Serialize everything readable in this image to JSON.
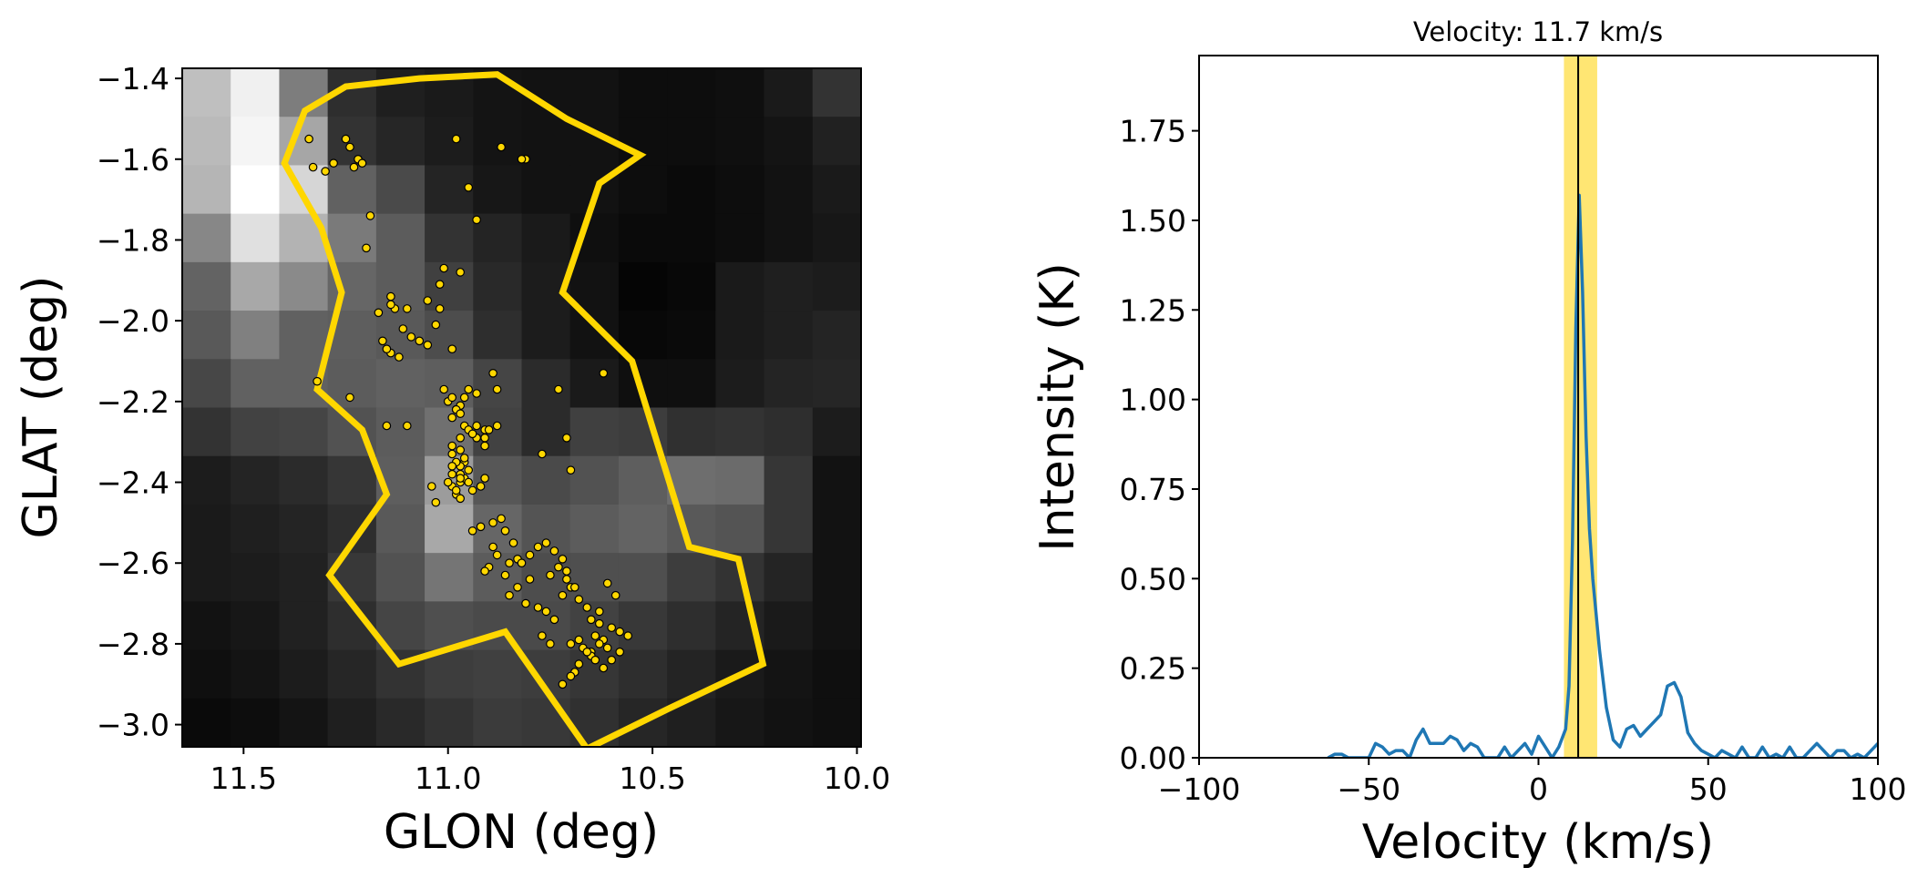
{
  "chart_data": [
    {
      "type": "heatmap",
      "title": "",
      "xlabel": "GLON (deg)",
      "ylabel": "GLAT (deg)",
      "xlim": [
        11.65,
        9.99
      ],
      "ylim": [
        -3.055,
        -1.375
      ],
      "x_ticks": [
        11.5,
        11.0,
        10.5,
        10.0
      ],
      "x_tick_labels": [
        "11.5",
        "11.0",
        "10.5",
        "10.0"
      ],
      "y_ticks": [
        -1.4,
        -1.6,
        -1.8,
        -2.0,
        -2.2,
        -2.4,
        -2.6,
        -2.8,
        -3.0
      ],
      "y_tick_labels": [
        "−1.4",
        "−1.6",
        "−1.8",
        "−2.0",
        "−2.2",
        "−2.4",
        "−2.6",
        "−2.8",
        "−3.0"
      ],
      "grid": false,
      "colormap": "gray",
      "image": {
        "x_start": 11.65,
        "x_end": 9.99,
        "y_start": -1.375,
        "y_end": -3.055,
        "values": [
          [
            0.75,
            0.94,
            0.49,
            0.18,
            0.12,
            0.1,
            0.08,
            0.07,
            0.07,
            0.05,
            0.05,
            0.06,
            0.1,
            0.2
          ],
          [
            0.73,
            0.96,
            0.65,
            0.2,
            0.15,
            0.11,
            0.08,
            0.07,
            0.07,
            0.05,
            0.05,
            0.06,
            0.08,
            0.13
          ],
          [
            0.71,
            1.0,
            0.84,
            0.38,
            0.29,
            0.14,
            0.09,
            0.07,
            0.07,
            0.05,
            0.04,
            0.05,
            0.07,
            0.1
          ],
          [
            0.53,
            0.88,
            0.7,
            0.48,
            0.36,
            0.2,
            0.14,
            0.1,
            0.06,
            0.04,
            0.04,
            0.05,
            0.07,
            0.09
          ],
          [
            0.39,
            0.66,
            0.54,
            0.4,
            0.36,
            0.25,
            0.16,
            0.11,
            0.07,
            0.02,
            0.03,
            0.1,
            0.12,
            0.11
          ],
          [
            0.35,
            0.5,
            0.38,
            0.37,
            0.35,
            0.3,
            0.18,
            0.11,
            0.07,
            0.03,
            0.04,
            0.1,
            0.12,
            0.14
          ],
          [
            0.28,
            0.38,
            0.38,
            0.36,
            0.38,
            0.37,
            0.27,
            0.17,
            0.1,
            0.06,
            0.06,
            0.11,
            0.14,
            0.15
          ],
          [
            0.2,
            0.26,
            0.27,
            0.32,
            0.36,
            0.44,
            0.26,
            0.17,
            0.25,
            0.24,
            0.19,
            0.2,
            0.18,
            0.11
          ],
          [
            0.11,
            0.14,
            0.17,
            0.21,
            0.37,
            0.61,
            0.34,
            0.29,
            0.32,
            0.37,
            0.43,
            0.42,
            0.21,
            0.07
          ],
          [
            0.1,
            0.12,
            0.14,
            0.18,
            0.35,
            0.66,
            0.4,
            0.33,
            0.36,
            0.39,
            0.35,
            0.33,
            0.21,
            0.07
          ],
          [
            0.1,
            0.11,
            0.13,
            0.22,
            0.32,
            0.46,
            0.36,
            0.3,
            0.31,
            0.31,
            0.24,
            0.2,
            0.14,
            0.07
          ],
          [
            0.07,
            0.09,
            0.13,
            0.18,
            0.27,
            0.31,
            0.29,
            0.29,
            0.26,
            0.22,
            0.18,
            0.14,
            0.1,
            0.07
          ],
          [
            0.06,
            0.08,
            0.11,
            0.15,
            0.2,
            0.24,
            0.25,
            0.24,
            0.21,
            0.18,
            0.14,
            0.1,
            0.08,
            0.06
          ],
          [
            0.04,
            0.05,
            0.08,
            0.12,
            0.16,
            0.2,
            0.23,
            0.22,
            0.19,
            0.15,
            0.12,
            0.09,
            0.07,
            0.06
          ]
        ]
      },
      "contour": {
        "color": "#FFD700",
        "x": [
          11.35,
          11.25,
          11.07,
          10.88,
          10.71,
          10.53,
          10.63,
          10.72,
          10.55,
          10.48,
          10.41,
          10.29,
          10.23,
          10.46,
          10.66,
          10.86,
          11.12,
          11.29,
          11.15,
          11.21,
          11.32,
          11.26,
          11.31,
          11.4,
          11.35
        ],
        "y": [
          -1.48,
          -1.42,
          -1.4,
          -1.39,
          -1.5,
          -1.59,
          -1.66,
          -1.93,
          -2.1,
          -2.33,
          -2.56,
          -2.59,
          -2.85,
          -2.96,
          -3.06,
          -2.77,
          -2.85,
          -2.63,
          -2.43,
          -2.27,
          -2.17,
          -1.93,
          -1.77,
          -1.61,
          -1.48
        ]
      },
      "points": {
        "color": "#FFD700",
        "edge_color": "#000000",
        "x": [
          11.34,
          11.33,
          11.25,
          11.24,
          11.22,
          11.23,
          11.21,
          11.19,
          11.2,
          11.14,
          11.13,
          11.32,
          11.24,
          11.11,
          11.09,
          11.07,
          11.05,
          11.03,
          11.02,
          11.14,
          11.12,
          11.16,
          11.15,
          11.01,
          11.0,
          10.98,
          10.96,
          10.95,
          10.93,
          10.91,
          10.97,
          10.99,
          10.97,
          10.96,
          10.93,
          10.94,
          10.91,
          10.97,
          10.95,
          10.99,
          10.97,
          10.96,
          10.99,
          10.98,
          10.97,
          10.95,
          10.94,
          10.92,
          10.91,
          10.99,
          10.98,
          10.96,
          10.99,
          10.97,
          11.0,
          10.98,
          10.97,
          11.04,
          11.03,
          11.1,
          10.99,
          10.97,
          10.96,
          10.95,
          10.93,
          10.91,
          10.9,
          10.88,
          10.92,
          10.94,
          10.89,
          10.87,
          10.86,
          10.84,
          10.89,
          10.88,
          10.9,
          10.91,
          10.86,
          10.85,
          10.83,
          10.82,
          10.8,
          10.78,
          10.76,
          10.74,
          10.72,
          10.71,
          10.73,
          10.75,
          10.8,
          10.83,
          10.85,
          10.81,
          10.78,
          10.76,
          10.74,
          10.7,
          10.68,
          10.67,
          10.65,
          10.64,
          10.62,
          10.6,
          10.58,
          10.56,
          10.63,
          10.61,
          10.65,
          10.66,
          10.68,
          10.69,
          10.7,
          10.72,
          10.64,
          10.62,
          10.6,
          10.58,
          10.63,
          10.65,
          10.7,
          10.72,
          10.68,
          10.66,
          10.63,
          10.59,
          10.61,
          10.77,
          10.75,
          10.69,
          10.71,
          11.15,
          11.28,
          11.3,
          10.87,
          10.98,
          10.95,
          10.73,
          10.62,
          10.93,
          10.81,
          10.82,
          11.01,
          10.97,
          11.05,
          11.1,
          11.17,
          11.14,
          11.02,
          10.99,
          10.89,
          10.88,
          10.99,
          10.98,
          10.97,
          10.77,
          10.71,
          10.7
        ],
        "y": [
          -1.55,
          -1.62,
          -1.55,
          -1.57,
          -1.6,
          -1.62,
          -1.61,
          -1.74,
          -1.82,
          -1.94,
          -1.97,
          -2.15,
          -2.19,
          -2.02,
          -2.04,
          -2.05,
          -2.06,
          -2.01,
          -1.97,
          -2.08,
          -2.09,
          -2.05,
          -2.07,
          -2.17,
          -2.2,
          -2.22,
          -2.26,
          -2.27,
          -2.29,
          -2.31,
          -2.29,
          -2.31,
          -2.32,
          -2.35,
          -2.26,
          -2.28,
          -2.27,
          -2.36,
          -2.37,
          -2.38,
          -2.4,
          -2.39,
          -2.41,
          -2.43,
          -2.44,
          -2.4,
          -2.42,
          -2.41,
          -2.39,
          -2.33,
          -2.35,
          -2.34,
          -2.36,
          -2.38,
          -2.4,
          -2.42,
          -2.39,
          -2.41,
          -2.45,
          -2.26,
          -2.24,
          -2.21,
          -2.19,
          -2.17,
          -2.18,
          -2.29,
          -2.27,
          -2.26,
          -2.51,
          -2.52,
          -2.5,
          -2.49,
          -2.52,
          -2.55,
          -2.56,
          -2.58,
          -2.61,
          -2.62,
          -2.63,
          -2.6,
          -2.59,
          -2.6,
          -2.58,
          -2.56,
          -2.55,
          -2.57,
          -2.59,
          -2.62,
          -2.61,
          -2.63,
          -2.64,
          -2.66,
          -2.68,
          -2.7,
          -2.71,
          -2.72,
          -2.74,
          -2.8,
          -2.79,
          -2.81,
          -2.82,
          -2.78,
          -2.79,
          -2.76,
          -2.77,
          -2.78,
          -2.8,
          -2.81,
          -2.83,
          -2.82,
          -2.85,
          -2.87,
          -2.88,
          -2.9,
          -2.84,
          -2.86,
          -2.84,
          -2.82,
          -2.75,
          -2.74,
          -2.66,
          -2.68,
          -2.69,
          -2.71,
          -2.72,
          -2.68,
          -2.65,
          -2.78,
          -2.8,
          -2.66,
          -2.64,
          -2.26,
          -1.61,
          -1.63,
          -1.57,
          -1.55,
          -1.67,
          -2.17,
          -2.13,
          -1.75,
          -1.6,
          -1.6,
          -1.87,
          -1.88,
          -1.95,
          -1.97,
          -1.98,
          -1.96,
          -1.91,
          -2.07,
          -2.13,
          -2.17,
          -2.19,
          -2.22,
          -2.23,
          -2.33,
          -2.29,
          -2.37
        ]
      }
    },
    {
      "type": "line",
      "title": "Velocity: 11.7 km/s",
      "xlabel": "Velocity (km/s)",
      "ylabel": "Intensity (K)",
      "xlim": [
        -100,
        100
      ],
      "ylim": [
        0,
        1.96
      ],
      "x_ticks": [
        -100,
        -50,
        0,
        50,
        100
      ],
      "x_tick_labels": [
        "−100",
        "−50",
        "0",
        "50",
        "100"
      ],
      "y_ticks": [
        0,
        0.25,
        0.5,
        0.75,
        1.0,
        1.25,
        1.5,
        1.75
      ],
      "y_tick_labels": [
        "0.00",
        "0.25",
        "0.50",
        "0.75",
        "1.00",
        "1.25",
        "1.50",
        "1.75"
      ],
      "grid": false,
      "line_color": "#1f77b4",
      "highlight_band": {
        "x0": 7.5,
        "x1": 17.3,
        "color": "#FFE25A"
      },
      "marker_line": {
        "x": 11.7,
        "color": "#000000"
      },
      "series": [
        {
          "x": [
            -62,
            -60,
            -58,
            -56,
            -54,
            -52,
            -50,
            -48,
            -46,
            -44,
            -42,
            -40,
            -38,
            -36,
            -34,
            -32,
            -30,
            -28,
            -26,
            -24,
            -22,
            -20,
            -18,
            -16,
            -14,
            -12,
            -10,
            -8,
            -6,
            -4,
            -2,
            0,
            2,
            4,
            6,
            8,
            9,
            10,
            11,
            12,
            13,
            14,
            15,
            16,
            18,
            20,
            22,
            24,
            26,
            28,
            30,
            32,
            34,
            36,
            38,
            40,
            42,
            44,
            46,
            48,
            50,
            52,
            54,
            56,
            58,
            60,
            62,
            64,
            66,
            68,
            70,
            72,
            74,
            76,
            78,
            80,
            82,
            84,
            86,
            88,
            90,
            92,
            94,
            96,
            98,
            100
          ],
          "values": [
            0.0,
            0.01,
            0.01,
            0.0,
            0.0,
            0.0,
            0.0,
            0.04,
            0.03,
            0.01,
            0.02,
            0.02,
            0.0,
            0.05,
            0.08,
            0.04,
            0.04,
            0.04,
            0.06,
            0.05,
            0.02,
            0.04,
            0.03,
            0.0,
            0.0,
            0.0,
            0.03,
            0.0,
            0.02,
            0.04,
            0.01,
            0.06,
            0.03,
            0.0,
            0.03,
            0.08,
            0.2,
            0.6,
            1.2,
            1.57,
            1.3,
            0.9,
            0.64,
            0.5,
            0.3,
            0.14,
            0.05,
            0.03,
            0.08,
            0.09,
            0.06,
            0.08,
            0.1,
            0.12,
            0.2,
            0.21,
            0.17,
            0.07,
            0.04,
            0.02,
            0.01,
            0.0,
            0.02,
            0.01,
            0.0,
            0.03,
            0.0,
            0.0,
            0.03,
            0.0,
            0.01,
            0.0,
            0.03,
            0.0,
            0.0,
            0.02,
            0.04,
            0.02,
            0.0,
            0.02,
            0.02,
            0.0,
            0.01,
            0.0,
            0.02,
            0.04
          ]
        }
      ]
    }
  ]
}
